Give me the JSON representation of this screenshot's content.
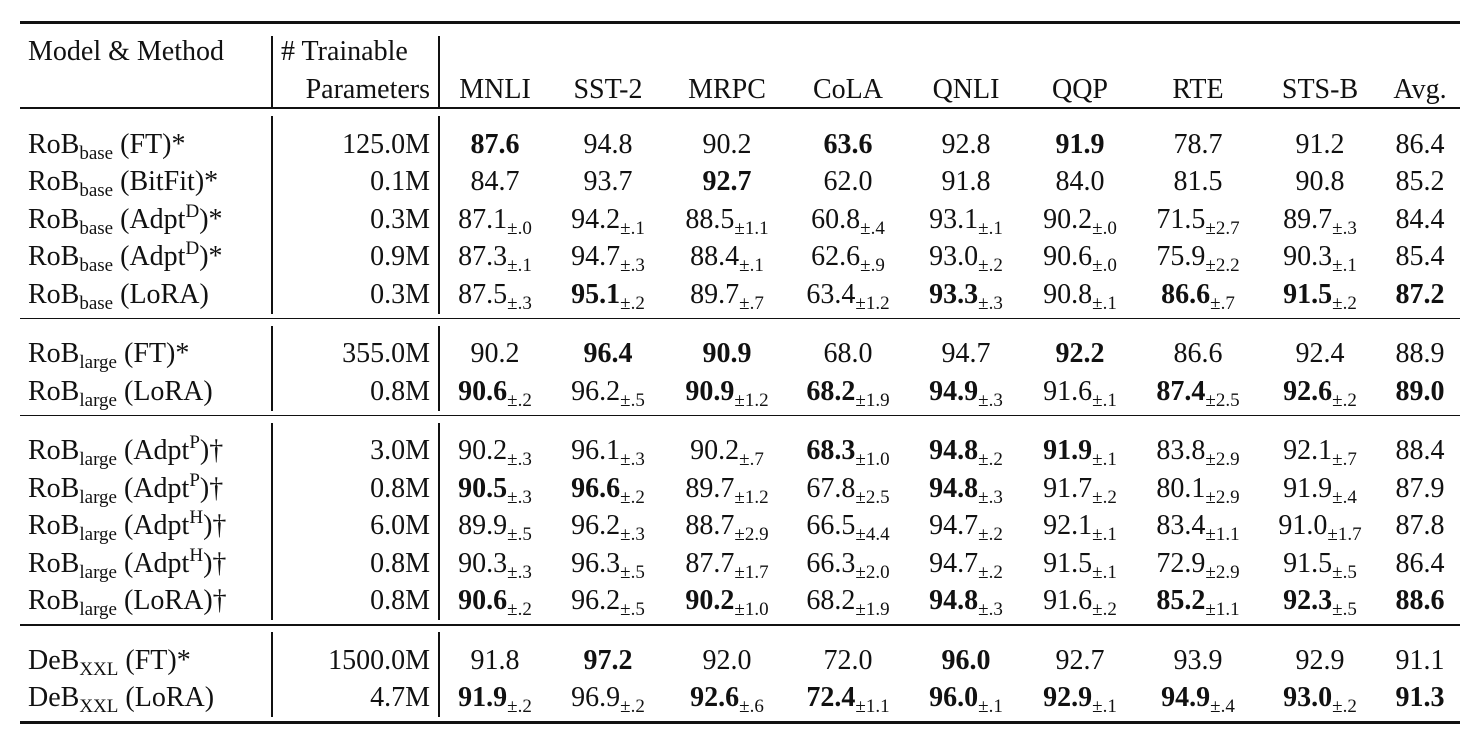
{
  "header": {
    "model_method": "Model & Method",
    "params": [
      "# Trainable",
      "Parameters"
    ],
    "columns": [
      "MNLI",
      "SST-2",
      "MRPC",
      "CoLA",
      "QNLI",
      "QQP",
      "RTE",
      "STS-B",
      "Avg."
    ]
  },
  "groups": [
    {
      "rows": [
        {
          "model": "RoB",
          "sub": "base",
          "method": "(FT)*",
          "params": "125.0M",
          "cells": [
            {
              "v": "87.6",
              "b": true
            },
            {
              "v": "94.8"
            },
            {
              "v": "90.2"
            },
            {
              "v": "63.6",
              "b": true
            },
            {
              "v": "92.8"
            },
            {
              "v": "91.9",
              "b": true
            },
            {
              "v": "78.7"
            },
            {
              "v": "91.2"
            },
            {
              "v": "86.4"
            }
          ]
        },
        {
          "model": "RoB",
          "sub": "base",
          "method": "(BitFit)*",
          "params": "0.1M",
          "cells": [
            {
              "v": "84.7"
            },
            {
              "v": "93.7"
            },
            {
              "v": "92.7",
              "b": true
            },
            {
              "v": "62.0"
            },
            {
              "v": "91.8"
            },
            {
              "v": "84.0"
            },
            {
              "v": "81.5"
            },
            {
              "v": "90.8"
            },
            {
              "v": "85.2"
            }
          ]
        },
        {
          "model": "RoB",
          "sub": "base",
          "method": [
            "(Adpt",
            "D",
            ")*"
          ],
          "params": "0.3M",
          "cells": [
            {
              "v": "87.1",
              "pm": "±.0"
            },
            {
              "v": "94.2",
              "pm": "±.1"
            },
            {
              "v": "88.5",
              "pm": "±1.1"
            },
            {
              "v": "60.8",
              "pm": "±.4"
            },
            {
              "v": "93.1",
              "pm": "±.1"
            },
            {
              "v": "90.2",
              "pm": "±.0"
            },
            {
              "v": "71.5",
              "pm": "±2.7"
            },
            {
              "v": "89.7",
              "pm": "±.3"
            },
            {
              "v": "84.4"
            }
          ]
        },
        {
          "model": "RoB",
          "sub": "base",
          "method": [
            "(Adpt",
            "D",
            ")*"
          ],
          "params": "0.9M",
          "cells": [
            {
              "v": "87.3",
              "pm": "±.1"
            },
            {
              "v": "94.7",
              "pm": "±.3"
            },
            {
              "v": "88.4",
              "pm": "±.1"
            },
            {
              "v": "62.6",
              "pm": "±.9"
            },
            {
              "v": "93.0",
              "pm": "±.2"
            },
            {
              "v": "90.6",
              "pm": "±.0"
            },
            {
              "v": "75.9",
              "pm": "±2.2"
            },
            {
              "v": "90.3",
              "pm": "±.1"
            },
            {
              "v": "85.4"
            }
          ]
        },
        {
          "model": "RoB",
          "sub": "base",
          "method": "(LoRA)",
          "params": "0.3M",
          "cells": [
            {
              "v": "87.5",
              "pm": "±.3"
            },
            {
              "v": "95.1",
              "pm": "±.2",
              "b": true
            },
            {
              "v": "89.7",
              "pm": "±.7"
            },
            {
              "v": "63.4",
              "pm": "±1.2"
            },
            {
              "v": "93.3",
              "pm": "±.3",
              "b": true
            },
            {
              "v": "90.8",
              "pm": "±.1"
            },
            {
              "v": "86.6",
              "pm": "±.7",
              "b": true
            },
            {
              "v": "91.5",
              "pm": "±.2",
              "b": true
            },
            {
              "v": "87.2",
              "b": true
            }
          ]
        }
      ]
    },
    {
      "rows": [
        {
          "model": "RoB",
          "sub": "large",
          "method": "(FT)*",
          "params": "355.0M",
          "cells": [
            {
              "v": "90.2"
            },
            {
              "v": "96.4",
              "b": true
            },
            {
              "v": "90.9",
              "b": true
            },
            {
              "v": "68.0"
            },
            {
              "v": "94.7"
            },
            {
              "v": "92.2",
              "b": true
            },
            {
              "v": "86.6"
            },
            {
              "v": "92.4"
            },
            {
              "v": "88.9"
            }
          ]
        },
        {
          "model": "RoB",
          "sub": "large",
          "method": "(LoRA)",
          "params": "0.8M",
          "cells": [
            {
              "v": "90.6",
              "pm": "±.2",
              "b": true
            },
            {
              "v": "96.2",
              "pm": "±.5"
            },
            {
              "v": "90.9",
              "pm": "±1.2",
              "b": true
            },
            {
              "v": "68.2",
              "pm": "±1.9",
              "b": true
            },
            {
              "v": "94.9",
              "pm": "±.3",
              "b": true
            },
            {
              "v": "91.6",
              "pm": "±.1"
            },
            {
              "v": "87.4",
              "pm": "±2.5",
              "b": true
            },
            {
              "v": "92.6",
              "pm": "±.2",
              "b": true
            },
            {
              "v": "89.0",
              "b": true
            }
          ]
        }
      ]
    },
    {
      "rows": [
        {
          "model": "RoB",
          "sub": "large",
          "method": [
            "(Adpt",
            "P",
            ")†"
          ],
          "params": "3.0M",
          "cells": [
            {
              "v": "90.2",
              "pm": "±.3"
            },
            {
              "v": "96.1",
              "pm": "±.3"
            },
            {
              "v": "90.2",
              "pm": "±.7"
            },
            {
              "v": "68.3",
              "pm": "±1.0",
              "b": true
            },
            {
              "v": "94.8",
              "pm": "±.2",
              "b": true
            },
            {
              "v": "91.9",
              "pm": "±.1",
              "b": true
            },
            {
              "v": "83.8",
              "pm": "±2.9"
            },
            {
              "v": "92.1",
              "pm": "±.7"
            },
            {
              "v": "88.4"
            }
          ]
        },
        {
          "model": "RoB",
          "sub": "large",
          "method": [
            "(Adpt",
            "P",
            ")†"
          ],
          "params": "0.8M",
          "cells": [
            {
              "v": "90.5",
              "pm": "±.3",
              "b": true
            },
            {
              "v": "96.6",
              "pm": "±.2",
              "b": true
            },
            {
              "v": "89.7",
              "pm": "±1.2"
            },
            {
              "v": "67.8",
              "pm": "±2.5"
            },
            {
              "v": "94.8",
              "pm": "±.3",
              "b": true
            },
            {
              "v": "91.7",
              "pm": "±.2"
            },
            {
              "v": "80.1",
              "pm": "±2.9"
            },
            {
              "v": "91.9",
              "pm": "±.4"
            },
            {
              "v": "87.9"
            }
          ]
        },
        {
          "model": "RoB",
          "sub": "large",
          "method": [
            "(Adpt",
            "H",
            ")†"
          ],
          "params": "6.0M",
          "cells": [
            {
              "v": "89.9",
              "pm": "±.5"
            },
            {
              "v": "96.2",
              "pm": "±.3"
            },
            {
              "v": "88.7",
              "pm": "±2.9"
            },
            {
              "v": "66.5",
              "pm": "±4.4"
            },
            {
              "v": "94.7",
              "pm": "±.2"
            },
            {
              "v": "92.1",
              "pm": "±.1"
            },
            {
              "v": "83.4",
              "pm": "±1.1"
            },
            {
              "v": "91.0",
              "pm": "±1.7"
            },
            {
              "v": "87.8"
            }
          ]
        },
        {
          "model": "RoB",
          "sub": "large",
          "method": [
            "(Adpt",
            "H",
            ")†"
          ],
          "params": "0.8M",
          "cells": [
            {
              "v": "90.3",
              "pm": "±.3"
            },
            {
              "v": "96.3",
              "pm": "±.5"
            },
            {
              "v": "87.7",
              "pm": "±1.7"
            },
            {
              "v": "66.3",
              "pm": "±2.0"
            },
            {
              "v": "94.7",
              "pm": "±.2"
            },
            {
              "v": "91.5",
              "pm": "±.1"
            },
            {
              "v": "72.9",
              "pm": "±2.9"
            },
            {
              "v": "91.5",
              "pm": "±.5"
            },
            {
              "v": "86.4"
            }
          ]
        },
        {
          "model": "RoB",
          "sub": "large",
          "method": "(LoRA)†",
          "params": "0.8M",
          "cells": [
            {
              "v": "90.6",
              "pm": "±.2",
              "b": true
            },
            {
              "v": "96.2",
              "pm": "±.5"
            },
            {
              "v": "90.2",
              "pm": "±1.0",
              "b": true
            },
            {
              "v": "68.2",
              "pm": "±1.9"
            },
            {
              "v": "94.8",
              "pm": "±.3",
              "b": true
            },
            {
              "v": "91.6",
              "pm": "±.2"
            },
            {
              "v": "85.2",
              "pm": "±1.1",
              "b": true
            },
            {
              "v": "92.3",
              "pm": "±.5",
              "b": true
            },
            {
              "v": "88.6",
              "b": true
            }
          ]
        }
      ]
    },
    {
      "rows": [
        {
          "model": "DeB",
          "sub": "XXL",
          "method": "(FT)*",
          "params": "1500.0M",
          "cells": [
            {
              "v": "91.8"
            },
            {
              "v": "97.2",
              "b": true
            },
            {
              "v": "92.0"
            },
            {
              "v": "72.0"
            },
            {
              "v": "96.0",
              "b": true
            },
            {
              "v": "92.7"
            },
            {
              "v": "93.9"
            },
            {
              "v": "92.9"
            },
            {
              "v": "91.1"
            }
          ]
        },
        {
          "model": "DeB",
          "sub": "XXL",
          "method": "(LoRA)",
          "params": "4.7M",
          "cells": [
            {
              "v": "91.9",
              "pm": "±.2",
              "b": true
            },
            {
              "v": "96.9",
              "pm": "±.2"
            },
            {
              "v": "92.6",
              "pm": "±.6",
              "b": true
            },
            {
              "v": "72.4",
              "pm": "±1.1",
              "b": true
            },
            {
              "v": "96.0",
              "pm": "±.1",
              "b": true
            },
            {
              "v": "92.9",
              "pm": "±.1",
              "b": true
            },
            {
              "v": "94.9",
              "pm": "±.4",
              "b": true
            },
            {
              "v": "93.0",
              "pm": "±.2",
              "b": true
            },
            {
              "v": "91.3",
              "b": true
            }
          ]
        }
      ]
    }
  ]
}
